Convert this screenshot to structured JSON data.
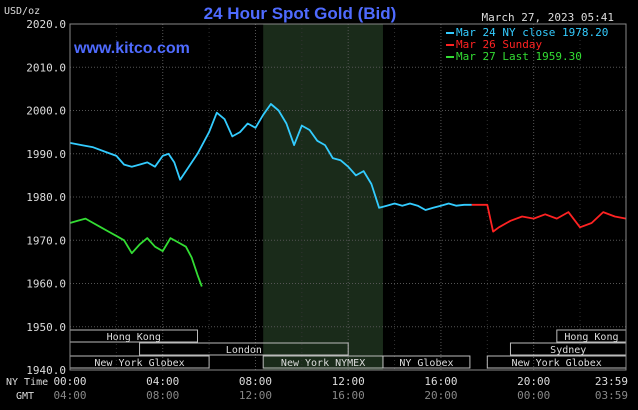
{
  "chart_data": {
    "type": "line",
    "title": "24 Hour Spot Gold (Bid)",
    "ylabel": "USD/oz",
    "watermark": "www.kitco.com",
    "timestamp": "March 27, 2023 05:41",
    "ylim": [
      1940.0,
      2020.0
    ],
    "y_ticks": [
      "2020.0",
      "2010.0",
      "2000.0",
      "1990.0",
      "1980.0",
      "1970.0",
      "1960.0",
      "1950.0",
      "1940.0"
    ],
    "x_axis_labels": {
      "ny_time": "NY Time",
      "gmt": "GMT"
    },
    "x_ticks_ny": [
      "00:00",
      "04:00",
      "08:00",
      "12:00",
      "16:00",
      "20:00",
      "23:59"
    ],
    "x_ticks_gmt": [
      "04:00",
      "08:00",
      "12:00",
      "16:00",
      "20:00",
      "00:00",
      "03:59"
    ],
    "grid": true,
    "legend": {
      "placement": "top-right",
      "entries": [
        {
          "label": "Mar 24 NY close 1978.20",
          "color": "#33ccff"
        },
        {
          "label": "Mar 26 Sunday",
          "color": "#ff2222"
        },
        {
          "label": "Mar 27 Last 1959.30",
          "color": "#33dd33"
        }
      ]
    },
    "market_sessions": [
      {
        "name": "Hong Kong",
        "start": "00:00",
        "end": "05:30"
      },
      {
        "name": "London",
        "start": "03:00",
        "end": "12:00"
      },
      {
        "name": "New York Globex",
        "start": "00:00",
        "end": "06:00"
      },
      {
        "name": "New York NYMEX",
        "start": "08:20",
        "end": "13:30"
      },
      {
        "name": "NY Globex",
        "start": "13:30",
        "end": "17:15"
      },
      {
        "name": "Sydney",
        "start": "19:00",
        "end": "23:59"
      },
      {
        "name": "Hong Kong",
        "start": "21:00",
        "end": "23:59"
      },
      {
        "name": "New York Globex",
        "start": "18:00",
        "end": "23:59"
      }
    ],
    "nymex_shade": {
      "start": "08:20",
      "end": "13:30"
    },
    "series": [
      {
        "name": "Mar 24 NY close 1978.20",
        "color": "#33ccff",
        "x": [
          "00:00",
          "00:30",
          "01:00",
          "01:30",
          "02:00",
          "02:20",
          "02:40",
          "03:00",
          "03:20",
          "03:40",
          "04:00",
          "04:15",
          "04:30",
          "04:45",
          "05:00",
          "05:30",
          "06:00",
          "06:20",
          "06:40",
          "07:00",
          "07:20",
          "07:40",
          "08:00",
          "08:20",
          "08:40",
          "09:00",
          "09:20",
          "09:40",
          "10:00",
          "10:20",
          "10:40",
          "11:00",
          "11:20",
          "11:40",
          "12:00",
          "12:20",
          "12:40",
          "13:00",
          "13:20",
          "13:40",
          "14:00",
          "14:20",
          "14:40",
          "15:00",
          "15:20",
          "15:40",
          "16:00",
          "16:20",
          "16:40",
          "17:00",
          "17:20"
        ],
        "values": [
          1992.5,
          1992.0,
          1991.5,
          1990.5,
          1989.5,
          1987.5,
          1987.0,
          1987.5,
          1988.0,
          1987.0,
          1989.5,
          1990.0,
          1988.0,
          1984.0,
          1986.0,
          1990.0,
          1995.0,
          1999.5,
          1998.0,
          1994.0,
          1995.0,
          1997.0,
          1996.0,
          1999.0,
          2001.5,
          2000.0,
          1997.0,
          1992.0,
          1996.5,
          1995.5,
          1993.0,
          1992.0,
          1989.0,
          1988.5,
          1987.0,
          1985.0,
          1986.0,
          1983.0,
          1977.5,
          1978.0,
          1978.5,
          1978.0,
          1978.5,
          1978.0,
          1977.0,
          1977.5,
          1978.0,
          1978.5,
          1978.0,
          1978.2,
          1978.2
        ]
      },
      {
        "name": "Mar 26 Sunday",
        "color": "#ff2222",
        "x": [
          "17:20",
          "18:00",
          "18:15",
          "18:30",
          "19:00",
          "19:30",
          "20:00",
          "20:30",
          "21:00",
          "21:30",
          "22:00",
          "22:30",
          "23:00",
          "23:30",
          "23:59"
        ],
        "values": [
          1978.2,
          1978.2,
          1972.0,
          1973.0,
          1974.5,
          1975.5,
          1975.0,
          1976.0,
          1975.0,
          1976.5,
          1973.0,
          1974.0,
          1976.5,
          1975.5,
          1975.0
        ]
      },
      {
        "name": "Mar 27 Last 1959.30",
        "color": "#33dd33",
        "x": [
          "00:00",
          "00:20",
          "00:40",
          "01:00",
          "01:20",
          "01:40",
          "02:00",
          "02:20",
          "02:40",
          "03:00",
          "03:20",
          "03:40",
          "04:00",
          "04:20",
          "04:40",
          "05:00",
          "05:15",
          "05:30",
          "05:41"
        ],
        "values": [
          1974.0,
          1974.5,
          1975.0,
          1974.0,
          1973.0,
          1972.0,
          1971.0,
          1970.0,
          1967.0,
          1969.0,
          1970.5,
          1968.5,
          1967.5,
          1970.5,
          1969.5,
          1968.5,
          1966.0,
          1962.0,
          1959.3
        ]
      }
    ]
  }
}
